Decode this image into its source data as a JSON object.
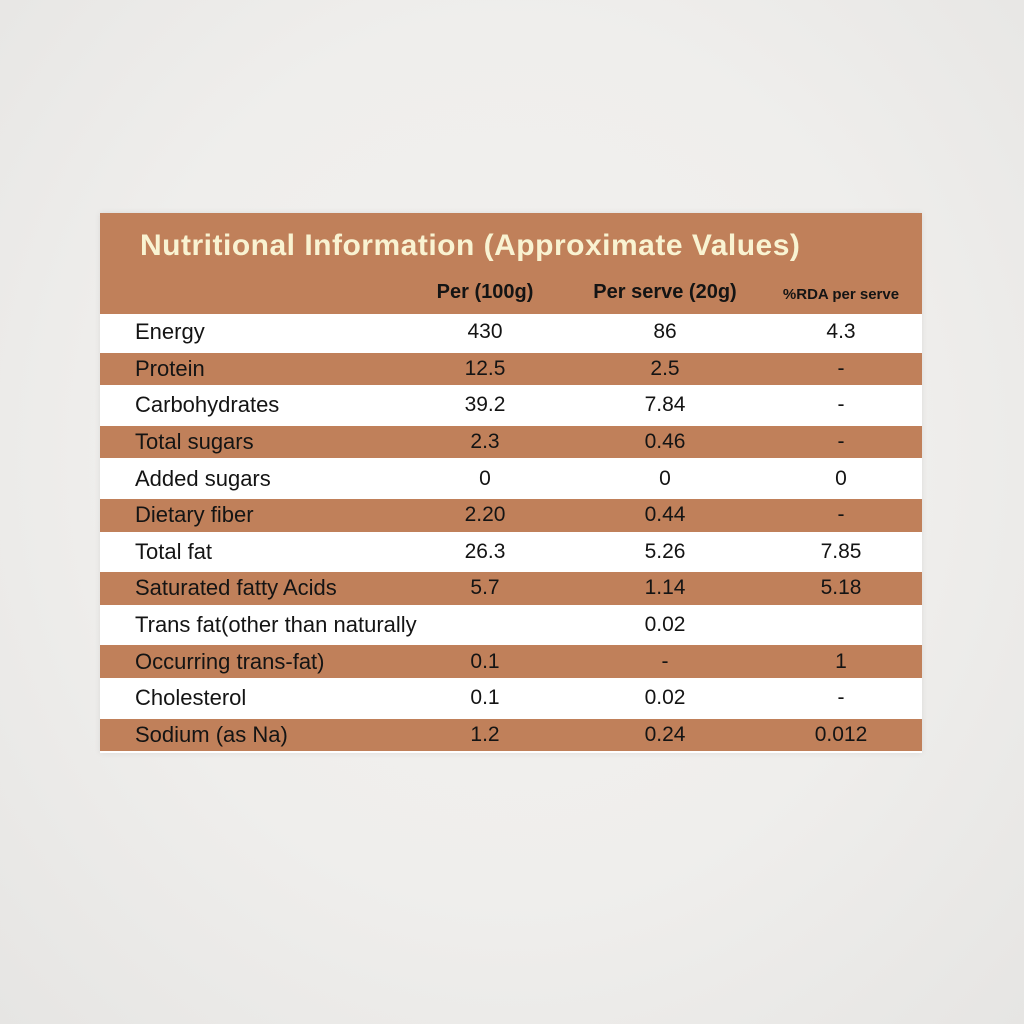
{
  "page": {
    "background_color": "#efeeec"
  },
  "label": {
    "title": "Nutritional Information (Approximate Values)",
    "colors": {
      "band_brown": "#c0805a",
      "title_text": "#f9f3d2",
      "body_text": "#141414",
      "row_white": "#ffffff"
    },
    "columns": {
      "per_100g": "Per (100g)",
      "per_serve": "Per serve (20g)",
      "rda_per_serve": "%RDA per serve"
    },
    "rows": [
      {
        "label": "Energy",
        "per_100g": "430",
        "per_serve": "86",
        "rda_per_serve": "4.3"
      },
      {
        "label": "Protein",
        "per_100g": "12.5",
        "per_serve": "2.5",
        "rda_per_serve": "-"
      },
      {
        "label": "Carbohydrates",
        "per_100g": "39.2",
        "per_serve": "7.84",
        "rda_per_serve": "-"
      },
      {
        "label": "Total sugars",
        "per_100g": "2.3",
        "per_serve": "0.46",
        "rda_per_serve": "-"
      },
      {
        "label": "Added sugars",
        "per_100g": "0",
        "per_serve": "0",
        "rda_per_serve": "0"
      },
      {
        "label": "Dietary fiber",
        "per_100g": "2.20",
        "per_serve": "0.44",
        "rda_per_serve": "-"
      },
      {
        "label": "Total fat",
        "per_100g": "26.3",
        "per_serve": "5.26",
        "rda_per_serve": "7.85"
      },
      {
        "label": "Saturated fatty Acids",
        "per_100g": "5.7",
        "per_serve": "1.14",
        "rda_per_serve": "5.18"
      },
      {
        "label": "Trans fat(other than naturally",
        "per_100g": "",
        "per_serve": "0.02",
        "rda_per_serve": ""
      },
      {
        "label": "Occurring trans-fat)",
        "per_100g": "0.1",
        "per_serve": "-",
        "rda_per_serve": "1"
      },
      {
        "label": "Cholesterol",
        "per_100g": "0.1",
        "per_serve": "0.02",
        "rda_per_serve": "-"
      },
      {
        "label": "Sodium (as Na)",
        "per_100g": "1.2",
        "per_serve": "0.24",
        "rda_per_serve": "0.012"
      }
    ]
  },
  "chart_data": {
    "type": "table",
    "title": "Nutritional Information (Approximate Values)",
    "columns": [
      "Nutrient",
      "Per (100g)",
      "Per serve (20g)",
      "%RDA per serve"
    ],
    "rows": [
      [
        "Energy",
        "430",
        "86",
        "4.3"
      ],
      [
        "Protein",
        "12.5",
        "2.5",
        "-"
      ],
      [
        "Carbohydrates",
        "39.2",
        "7.84",
        "-"
      ],
      [
        "Total sugars",
        "2.3",
        "0.46",
        "-"
      ],
      [
        "Added sugars",
        "0",
        "0",
        "0"
      ],
      [
        "Dietary fiber",
        "2.20",
        "0.44",
        "-"
      ],
      [
        "Total fat",
        "26.3",
        "5.26",
        "7.85"
      ],
      [
        "Saturated fatty Acids",
        "5.7",
        "1.14",
        "5.18"
      ],
      [
        "Trans fat(other than naturally",
        "",
        "0.02",
        ""
      ],
      [
        "Occurring trans-fat)",
        "0.1",
        "-",
        "1"
      ],
      [
        "Cholesterol",
        "0.1",
        "0.02",
        "-"
      ],
      [
        "Sodium (as Na)",
        "1.2",
        "0.24",
        "0.012"
      ]
    ]
  }
}
